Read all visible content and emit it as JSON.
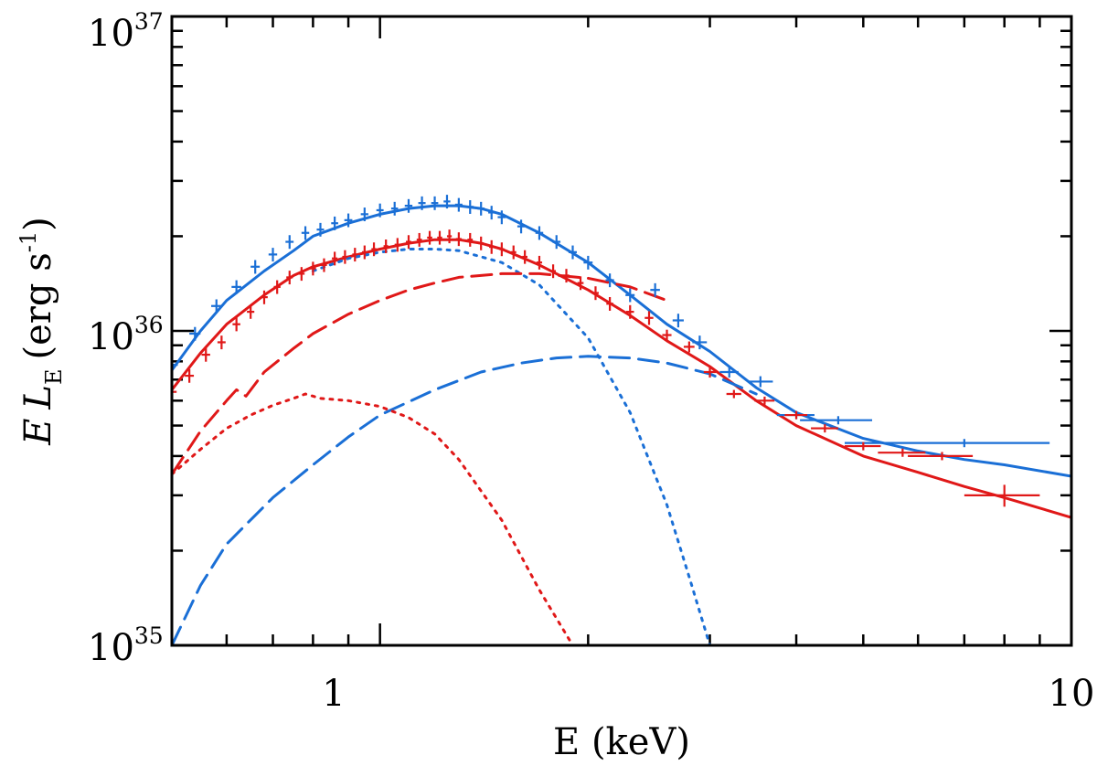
{
  "chart_data": {
    "type": "line",
    "title": "",
    "xlabel": "E (keV)",
    "ylabel": {
      "e": "E",
      "l": "L",
      "sub": "E",
      "unit_open": "(erg s",
      "unit_exp": "-1",
      "unit_close": ")"
    },
    "x_scale": "log",
    "y_scale": "log",
    "xlim": [
      0.5,
      10
    ],
    "ylim": [
      1e+35,
      1e+37
    ],
    "x_ticks": [
      {
        "value": 1,
        "label": "1"
      },
      {
        "value": 10,
        "label": "10"
      }
    ],
    "y_ticks": [
      {
        "value": 1e+35,
        "base": "10",
        "exp": "35"
      },
      {
        "value": 1e+36,
        "base": "10",
        "exp": "36"
      },
      {
        "value": 1e+37,
        "base": "10",
        "exp": "37"
      }
    ],
    "colors": {
      "blue": "#1a6fd6",
      "red": "#e01818"
    },
    "series": [
      {
        "name": "blue total model",
        "color": "blue",
        "style": "solid",
        "x": [
          0.5,
          0.55,
          0.6,
          0.68,
          0.75,
          0.8,
          0.9,
          1.0,
          1.1,
          1.2,
          1.3,
          1.4,
          1.5,
          1.7,
          2.0,
          2.3,
          2.6,
          3.0,
          3.5,
          4.0,
          5.0,
          6.0,
          7.0,
          8.0,
          10.0
        ],
        "y": [
          7.5e+35,
          1e+36,
          1.25e+36,
          1.55e+36,
          1.8e+36,
          2e+36,
          2.2e+36,
          2.35e+36,
          2.45e+36,
          2.5e+36,
          2.5e+36,
          2.45e+36,
          2.35e+36,
          2.05e+36,
          1.65e+36,
          1.3e+36,
          1.05e+36,
          8.6e+35,
          6.6e+35,
          5.5e+35,
          4.55e+35,
          4.15e+35,
          3.9e+35,
          3.75e+35,
          3.45e+35
        ]
      },
      {
        "name": "red total model",
        "color": "red",
        "style": "solid",
        "x": [
          0.5,
          0.55,
          0.6,
          0.68,
          0.75,
          0.8,
          0.9,
          1.0,
          1.1,
          1.2,
          1.3,
          1.4,
          1.5,
          1.7,
          2.0,
          2.3,
          2.6,
          3.0,
          3.5,
          4.0,
          5.0,
          6.0,
          7.0,
          8.0,
          10.0
        ],
        "y": [
          6.5e+35,
          8.5e+35,
          1.05e+36,
          1.3e+36,
          1.5e+36,
          1.6e+36,
          1.72e+36,
          1.82e+36,
          1.9e+36,
          1.95e+36,
          1.95e+36,
          1.9e+36,
          1.82e+36,
          1.62e+36,
          1.35e+36,
          1.12e+36,
          9.3e+35,
          7.7e+35,
          6e+35,
          5e+35,
          4e+35,
          3.55e+35,
          3.2e+35,
          2.95e+35,
          2.55e+35
        ]
      },
      {
        "name": "blue soft component",
        "color": "blue",
        "style": "dotted",
        "x": [
          0.8,
          0.9,
          1.0,
          1.1,
          1.2,
          1.3,
          1.5,
          1.7,
          2.0,
          2.3,
          2.6,
          2.8,
          3.0
        ],
        "y": [
          1.55e+36,
          1.7e+36,
          1.78e+36,
          1.82e+36,
          1.82e+36,
          1.8e+36,
          1.65e+36,
          1.4e+36,
          9.5e+35,
          5.5e+35,
          2.8e+35,
          1.65e+35,
          1e+35
        ]
      },
      {
        "name": "blue hard component",
        "color": "blue",
        "style": "dashed",
        "x": [
          0.5,
          0.55,
          0.6,
          0.7,
          0.8,
          0.9,
          1.0,
          1.2,
          1.4,
          1.6,
          1.8,
          2.0,
          2.3,
          2.6,
          3.0,
          3.5
        ],
        "y": [
          1e+35,
          1.55e+35,
          2.1e+35,
          2.95e+35,
          3.75e+35,
          4.6e+35,
          5.4e+35,
          6.5e+35,
          7.4e+35,
          7.9e+35,
          8.2e+35,
          8.3e+35,
          8.2e+35,
          7.9e+35,
          7.3e+35,
          6.3e+35
        ]
      },
      {
        "name": "red hard component",
        "color": "red",
        "style": "dashed",
        "x": [
          0.5,
          0.55,
          0.6,
          0.62,
          0.64,
          0.68,
          0.75,
          0.8,
          0.9,
          1.0,
          1.1,
          1.2,
          1.3,
          1.5,
          1.7,
          2.0,
          2.3,
          2.6
        ],
        "y": [
          3.5e+35,
          4.8e+35,
          6e+35,
          6.5e+35,
          6.2e+35,
          7.4e+35,
          8.8e+35,
          9.8e+35,
          1.13e+36,
          1.25e+36,
          1.35e+36,
          1.42e+36,
          1.48e+36,
          1.52e+36,
          1.52e+36,
          1.47e+36,
          1.38e+36,
          1.25e+36
        ]
      },
      {
        "name": "red soft component",
        "color": "red",
        "style": "dotted",
        "x": [
          0.5,
          0.55,
          0.6,
          0.65,
          0.7,
          0.75,
          0.78,
          0.82,
          0.9,
          1.0,
          1.1,
          1.2,
          1.3,
          1.5,
          1.7,
          1.9
        ],
        "y": [
          3.5e+35,
          4.2e+35,
          4.9e+35,
          5.4e+35,
          5.8e+35,
          6.1e+35,
          6.3e+35,
          6.1e+35,
          6e+35,
          5.75e+35,
          5.3e+35,
          4.7e+35,
          3.9e+35,
          2.5e+35,
          1.5e+35,
          1e+35
        ]
      }
    ],
    "error_points": [
      {
        "name": "blue data",
        "color": "blue",
        "x": [
          0.5,
          0.54,
          0.58,
          0.62,
          0.66,
          0.7,
          0.74,
          0.78,
          0.82,
          0.86,
          0.9,
          0.95,
          1.0,
          1.05,
          1.1,
          1.15,
          1.2,
          1.25,
          1.3,
          1.35,
          1.4,
          1.45,
          1.5,
          1.6,
          1.7,
          1.8,
          1.9,
          2.0,
          2.15,
          2.3,
          2.5,
          2.7,
          2.9,
          3.2,
          3.55,
          4.0,
          4.6,
          7.0
        ],
        "y": [
          7.8e+35,
          9.8e+35,
          1.2e+36,
          1.38e+36,
          1.6e+36,
          1.75e+36,
          1.92e+36,
          2.05e+36,
          2.1e+36,
          2.2e+36,
          2.25e+36,
          2.35e+36,
          2.42e+36,
          2.45e+36,
          2.5e+36,
          2.55e+36,
          2.55e+36,
          2.58e+36,
          2.52e+36,
          2.48e+36,
          2.45e+36,
          2.38e+36,
          2.3e+36,
          2.15e+36,
          2.05e+36,
          1.92e+36,
          1.78e+36,
          1.65e+36,
          1.45e+36,
          1.3e+36,
          1.35e+36,
          1.08e+36,
          9.2e+35,
          7.4e+35,
          6.9e+35,
          5.4e+35,
          5.2e+35,
          4.4e+35
        ],
        "xerr": [
          0.01,
          0.01,
          0.01,
          0.01,
          0.01,
          0.01,
          0.01,
          0.01,
          0.01,
          0.01,
          0.012,
          0.012,
          0.012,
          0.012,
          0.014,
          0.014,
          0.014,
          0.014,
          0.016,
          0.016,
          0.016,
          0.016,
          0.02,
          0.02,
          0.022,
          0.024,
          0.026,
          0.03,
          0.03,
          0.035,
          0.04,
          0.05,
          0.07,
          0.1,
          0.15,
          0.25,
          0.55,
          2.3
        ],
        "yerr": [
          0.06,
          0.05,
          0.05,
          0.05,
          0.05,
          0.05,
          0.05,
          0.05,
          0.05,
          0.05,
          0.05,
          0.05,
          0.05,
          0.05,
          0.05,
          0.05,
          0.05,
          0.05,
          0.05,
          0.05,
          0.05,
          0.05,
          0.05,
          0.05,
          0.05,
          0.05,
          0.05,
          0.05,
          0.05,
          0.05,
          0.05,
          0.05,
          0.05,
          0.04,
          0.04,
          0.03,
          0.03,
          0.03
        ]
      },
      {
        "name": "red data",
        "color": "red",
        "x": [
          0.5,
          0.53,
          0.56,
          0.59,
          0.62,
          0.65,
          0.68,
          0.71,
          0.74,
          0.77,
          0.8,
          0.83,
          0.86,
          0.89,
          0.92,
          0.95,
          0.98,
          1.02,
          1.06,
          1.1,
          1.14,
          1.18,
          1.22,
          1.26,
          1.3,
          1.35,
          1.4,
          1.45,
          1.5,
          1.56,
          1.62,
          1.7,
          1.78,
          1.86,
          1.95,
          2.05,
          2.15,
          2.3,
          2.45,
          2.6,
          2.8,
          3.0,
          3.25,
          3.6,
          4.0,
          4.4,
          5.0,
          5.7,
          6.5,
          8.0
        ],
        "y": [
          6.4e+35,
          7.2e+35,
          8.4e+35,
          9.2e+35,
          1.05e+36,
          1.15e+36,
          1.28e+36,
          1.38e+36,
          1.48e+36,
          1.52e+36,
          1.58e+36,
          1.62e+36,
          1.7e+36,
          1.72e+36,
          1.75e+36,
          1.78e+36,
          1.82e+36,
          1.86e+36,
          1.88e+36,
          1.92e+36,
          1.95e+36,
          1.98e+36,
          1.98e+36,
          2e+36,
          1.96e+36,
          1.95e+36,
          1.9e+36,
          1.85e+36,
          1.82e+36,
          1.78e+36,
          1.72e+36,
          1.65e+36,
          1.55e+36,
          1.5e+36,
          1.42e+36,
          1.32e+36,
          1.22e+36,
          1.15e+36,
          1.1e+36,
          9.7e+35,
          8.9e+35,
          7.4e+35,
          6.3e+35,
          6e+35,
          5.4e+35,
          4.9e+35,
          4.3e+35,
          4.1e+35,
          4e+35,
          3e+35
        ],
        "xerr": [
          0.008,
          0.008,
          0.008,
          0.008,
          0.008,
          0.008,
          0.008,
          0.008,
          0.008,
          0.008,
          0.008,
          0.008,
          0.008,
          0.008,
          0.008,
          0.008,
          0.008,
          0.008,
          0.01,
          0.01,
          0.01,
          0.01,
          0.01,
          0.01,
          0.012,
          0.012,
          0.012,
          0.012,
          0.012,
          0.014,
          0.014,
          0.016,
          0.016,
          0.018,
          0.02,
          0.022,
          0.025,
          0.03,
          0.035,
          0.04,
          0.05,
          0.06,
          0.08,
          0.12,
          0.15,
          0.2,
          0.3,
          0.45,
          0.7,
          1.0
        ],
        "yerr": [
          0.05,
          0.05,
          0.05,
          0.05,
          0.05,
          0.05,
          0.05,
          0.05,
          0.05,
          0.05,
          0.05,
          0.05,
          0.05,
          0.05,
          0.05,
          0.05,
          0.05,
          0.05,
          0.05,
          0.05,
          0.05,
          0.05,
          0.05,
          0.05,
          0.05,
          0.05,
          0.05,
          0.05,
          0.05,
          0.05,
          0.05,
          0.05,
          0.05,
          0.05,
          0.05,
          0.05,
          0.05,
          0.05,
          0.05,
          0.04,
          0.04,
          0.04,
          0.03,
          0.03,
          0.03,
          0.03,
          0.03,
          0.03,
          0.03,
          0.08
        ]
      }
    ]
  }
}
